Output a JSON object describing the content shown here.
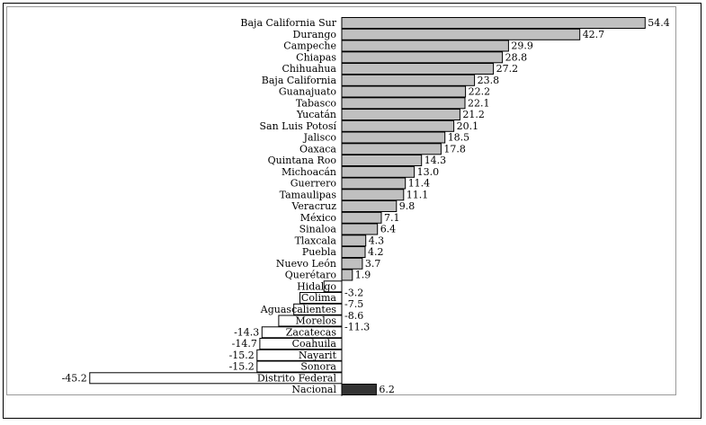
{
  "chart_data": {
    "type": "bar",
    "orientation": "horizontal",
    "title": "",
    "xlabel": "",
    "ylabel": "",
    "grid": false,
    "categories": [
      "Baja California Sur",
      "Durango",
      "Campeche",
      "Chiapas",
      "Chihuahua",
      "Baja California",
      "Guanajuato",
      "Tabasco",
      "Yucatán",
      "San Luis Potosí",
      "Jalisco",
      "Oaxaca",
      "Quintana Roo",
      "Michoacán",
      "Guerrero",
      "Tamaulipas",
      "Veracruz",
      "México",
      "Sinaloa",
      "Tlaxcala",
      "Puebla",
      "Nuevo León",
      "Querétaro",
      "Hidalgo",
      "Colima",
      "Aguascalientes",
      "Morelos",
      "Zacatecas",
      "Coahuila",
      "Nayarit",
      "Sonora",
      "Distrito Federal",
      "Nacional"
    ],
    "values": [
      54.4,
      42.7,
      29.9,
      28.8,
      27.2,
      23.8,
      22.2,
      22.1,
      21.2,
      20.1,
      18.5,
      17.8,
      14.3,
      13.0,
      11.4,
      11.1,
      9.8,
      7.1,
      6.4,
      4.3,
      4.2,
      3.7,
      1.9,
      -3.2,
      -7.5,
      -8.6,
      -11.3,
      -14.3,
      -14.7,
      -15.2,
      -15.2,
      -45.2,
      6.2
    ],
    "value_labels": [
      "54.4",
      "42.7",
      "29.9",
      "28.8",
      "27.2",
      "23.8",
      "22.2",
      "22.1",
      "21.2",
      "20.1",
      "18.5",
      "17.8",
      "14.3",
      "13.0",
      "11.4",
      "11.1",
      "9.8",
      "7.1",
      "6.4",
      "4.3",
      "4.2",
      "3.7",
      "1.9",
      "-3.2",
      "-7.5",
      "-8.6",
      "-11.3",
      "-14.3",
      "-14.7",
      "-15.2",
      "-15.2",
      "-45.2",
      "6.2"
    ],
    "xlim": [
      -47,
      55
    ],
    "colors": {
      "positive": "#c0c0c0",
      "negative": "#ffffff",
      "highlight": "#333333",
      "bar_stroke": "#000000"
    }
  }
}
